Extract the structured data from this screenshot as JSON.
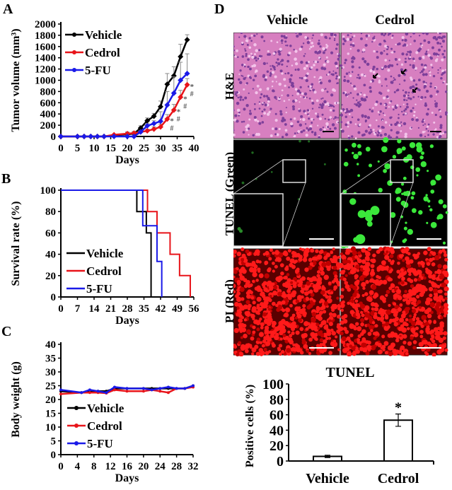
{
  "panels": {
    "a": "A",
    "b": "B",
    "c": "C",
    "d": "D"
  },
  "colors": {
    "Vehicle": "#000000",
    "Cedrol": "#e8141a",
    "5-FU": "#1a1ae8"
  },
  "chart_data": [
    {
      "id": "A",
      "type": "line",
      "xlabel": "Days",
      "ylabel": "Tumor volume (mm³)",
      "xlim": [
        0,
        40
      ],
      "ylim": [
        0,
        2000
      ],
      "xticks": [
        0,
        5,
        10,
        15,
        20,
        25,
        30,
        35,
        40
      ],
      "yticks": [
        0,
        200,
        400,
        600,
        800,
        1000,
        1200,
        1400,
        1600,
        1800,
        2000
      ],
      "legend": "top-left",
      "markers": "diamond",
      "x": [
        0,
        5,
        7,
        9,
        11,
        13,
        16,
        20,
        22,
        24,
        26,
        28,
        30,
        32,
        34,
        36,
        38
      ],
      "series": [
        {
          "name": "Vehicle",
          "values": [
            0,
            0,
            0,
            0,
            0,
            0,
            20,
            40,
            50,
            150,
            280,
            360,
            530,
            930,
            1080,
            1420,
            1720
          ],
          "err": [
            0,
            0,
            0,
            0,
            0,
            0,
            10,
            40,
            40,
            40,
            50,
            50,
            100,
            190,
            160,
            220,
            90
          ]
        },
        {
          "name": "Cedrol",
          "values": [
            0,
            0,
            0,
            0,
            0,
            0,
            30,
            50,
            60,
            80,
            100,
            130,
            170,
            310,
            470,
            700,
            920
          ],
          "err": [
            0,
            0,
            0,
            0,
            0,
            0,
            10,
            20,
            20,
            20,
            30,
            40,
            50,
            80,
            100,
            120,
            110
          ]
        },
        {
          "name": "5-FU",
          "values": [
            0,
            0,
            0,
            0,
            0,
            0,
            0,
            0,
            0,
            80,
            190,
            230,
            270,
            560,
            770,
            1000,
            1120
          ],
          "err": [
            0,
            0,
            0,
            0,
            0,
            0,
            0,
            0,
            0,
            20,
            40,
            50,
            170,
            240,
            290,
            320,
            350
          ]
        }
      ],
      "annotations": [
        {
          "x": 32,
          "text": "*#"
        },
        {
          "x": 34,
          "text": "*#"
        },
        {
          "x": 36,
          "text": "*#"
        },
        {
          "x": 38,
          "text": "*#"
        }
      ]
    },
    {
      "id": "B",
      "type": "line",
      "step": true,
      "xlabel": "Days",
      "ylabel": "Survival rate (%)",
      "xlim": [
        0,
        56
      ],
      "ylim": [
        0,
        100
      ],
      "xticks": [
        0,
        7,
        14,
        21,
        28,
        35,
        42,
        49,
        56
      ],
      "yticks": [
        0,
        20,
        40,
        60,
        80,
        100
      ],
      "legend": "bottom-left",
      "series": [
        {
          "name": "Vehicle",
          "x": [
            0,
            32,
            36,
            38
          ],
          "values": [
            100,
            80,
            60,
            0
          ]
        },
        {
          "name": "Cedrol",
          "x": [
            0,
            36.5,
            40.5,
            46,
            50,
            54.5
          ],
          "values": [
            100,
            80,
            60,
            40,
            20,
            0
          ]
        },
        {
          "name": "5-FU",
          "x": [
            0,
            34.5,
            40.5,
            42.5
          ],
          "values": [
            100,
            66.7,
            33.3,
            0
          ]
        }
      ]
    },
    {
      "id": "C",
      "type": "line",
      "xlabel": "Days",
      "ylabel": "Body weight (g)",
      "xlim": [
        0,
        32
      ],
      "ylim": [
        0,
        40
      ],
      "xticks": [
        0,
        4,
        8,
        12,
        16,
        20,
        24,
        28,
        32
      ],
      "yticks": [
        0,
        5,
        10,
        15,
        20,
        25,
        30,
        35,
        40
      ],
      "legend": "bottom-left",
      "markers": "dot",
      "x": [
        0,
        5,
        7,
        9,
        11,
        13,
        16,
        20,
        22,
        24,
        26,
        28,
        30,
        32
      ],
      "series": [
        {
          "name": "Vehicle",
          "values": [
            23,
            22.5,
            23,
            23,
            23,
            24,
            24,
            24,
            24,
            24,
            24,
            24,
            24,
            25
          ]
        },
        {
          "name": "Cedrol",
          "values": [
            22,
            22.5,
            22.5,
            22.5,
            22.3,
            23.5,
            23,
            23,
            23.5,
            23,
            22.5,
            24,
            24,
            24.5
          ]
        },
        {
          "name": "5-FU",
          "values": [
            23.5,
            22.5,
            23.5,
            23,
            22.5,
            24.5,
            24,
            24,
            23.5,
            24,
            24.5,
            24,
            24,
            25
          ]
        }
      ]
    },
    {
      "id": "E",
      "type": "bar",
      "title": "TUNEL",
      "ylabel": "Positive cells (%)",
      "ylim": [
        0,
        100
      ],
      "yticks": [
        0,
        20,
        40,
        60,
        80,
        100
      ],
      "categories": [
        "Vehicle",
        "Cedrol"
      ],
      "values": [
        6,
        53
      ],
      "err": [
        1.5,
        8
      ],
      "annotations": [
        "",
        "*"
      ]
    }
  ],
  "micrographs": {
    "columns": [
      "Vehicle",
      "Cedrol"
    ],
    "rows": [
      "H&E",
      "TUNEL (Green)",
      "PI (Red)"
    ]
  }
}
